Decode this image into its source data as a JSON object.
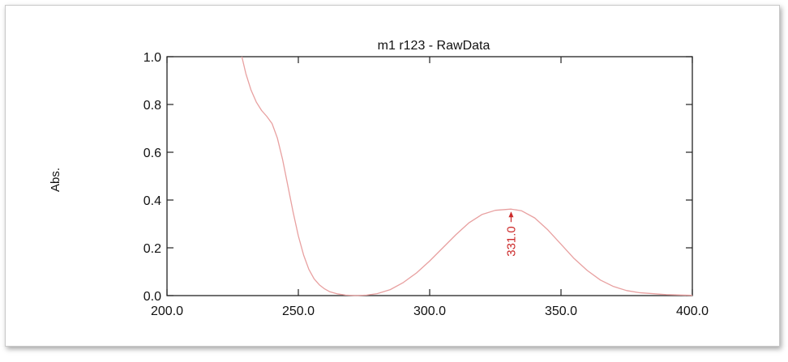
{
  "chart_data": {
    "type": "line",
    "title": "m1 r123 - RawData",
    "xlabel": "",
    "ylabel": "Abs.",
    "xlim": [
      200,
      400
    ],
    "ylim": [
      0,
      1
    ],
    "x_ticks": [
      "200.0",
      "250.0",
      "300.0",
      "350.0",
      "400.0"
    ],
    "y_ticks": [
      "0.0",
      "0.2",
      "0.4",
      "0.6",
      "0.8",
      "1.0"
    ],
    "grid": false,
    "series": [
      {
        "color": "#e8a0a0",
        "x": [
          228.5,
          230,
          232,
          234,
          236,
          238,
          240,
          242,
          244,
          246,
          248,
          250,
          252,
          254,
          256,
          258,
          260,
          262,
          265,
          268,
          272,
          276,
          280,
          285,
          290,
          295,
          300,
          305,
          310,
          315,
          320,
          325,
          331,
          335,
          340,
          345,
          350,
          355,
          360,
          365,
          370,
          375,
          380,
          390,
          400
        ],
        "y": [
          1.0,
          0.93,
          0.86,
          0.81,
          0.775,
          0.75,
          0.72,
          0.66,
          0.57,
          0.46,
          0.35,
          0.25,
          0.17,
          0.11,
          0.07,
          0.045,
          0.028,
          0.016,
          0.007,
          0.002,
          0.0,
          0.002,
          0.008,
          0.025,
          0.055,
          0.095,
          0.145,
          0.2,
          0.255,
          0.305,
          0.34,
          0.357,
          0.362,
          0.355,
          0.325,
          0.275,
          0.215,
          0.155,
          0.105,
          0.065,
          0.038,
          0.021,
          0.012,
          0.004,
          0.001
        ]
      }
    ],
    "annotations": [
      {
        "text": "331.0",
        "x": 331,
        "y": 0.362,
        "color": "#cc2a2a"
      }
    ]
  }
}
